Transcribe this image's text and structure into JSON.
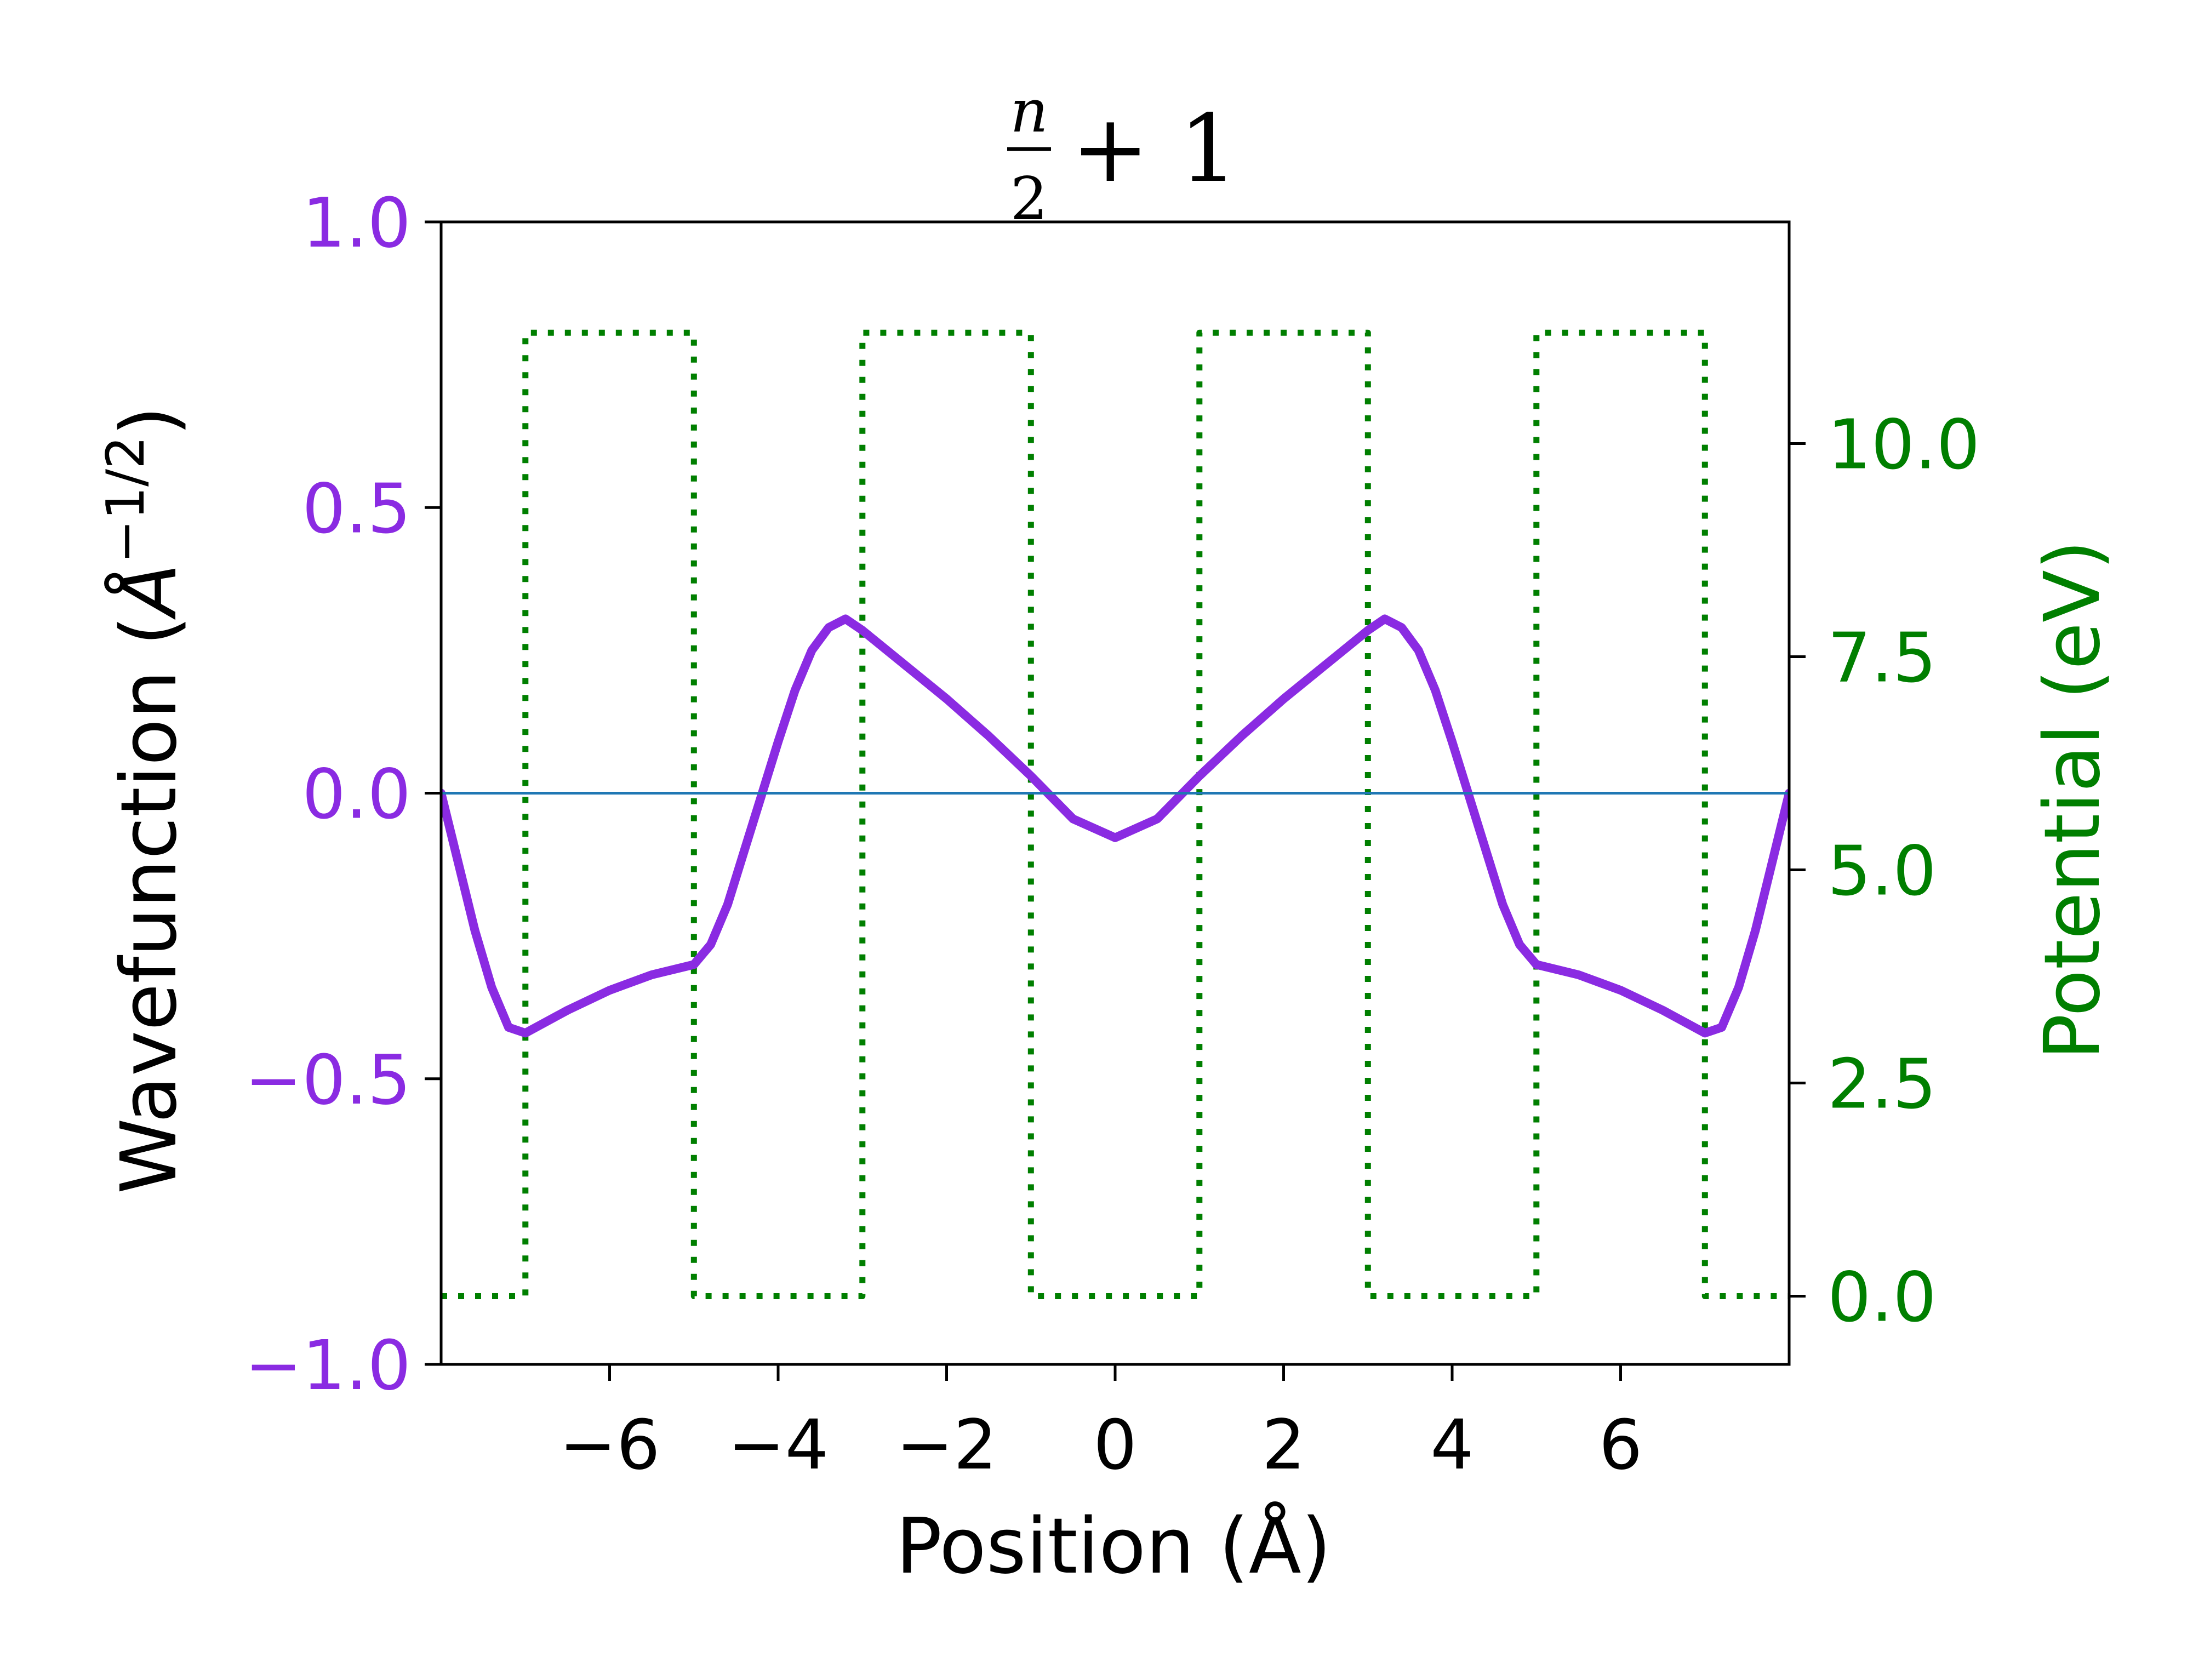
{
  "chart_data": {
    "type": "line",
    "title": {
      "fraction_numerator": "n",
      "fraction_denominator": "2",
      "rest": "+ 1"
    },
    "xlabel": "Position (Å)",
    "ylabel": "Wavefunction (Å⁻¹ᐟ²)",
    "ylabel_parts": {
      "base": "Wavefunction (",
      "unit": "Å",
      "exponent": "−1/2",
      "close": ")"
    },
    "y2label": "Potential (eV)",
    "xlim": [
      -8,
      8
    ],
    "ylim": [
      -1.0,
      1.0
    ],
    "y2lim": [
      -0.8,
      12.6
    ],
    "xticks": [
      -6,
      -4,
      -2,
      0,
      2,
      4,
      6
    ],
    "xtick_labels": [
      "−6",
      "−4",
      "−2",
      "0",
      "2",
      "4",
      "6"
    ],
    "yticks": [
      -1.0,
      -0.5,
      0.0,
      0.5,
      1.0
    ],
    "ytick_labels": [
      "−1.0",
      "−0.5",
      "0.0",
      "0.5",
      "1.0"
    ],
    "y2ticks": [
      0.0,
      2.5,
      5.0,
      7.5,
      10.0
    ],
    "y2tick_labels": [
      "0.0",
      "2.5",
      "5.0",
      "7.5",
      "10.0"
    ],
    "grid": false,
    "legend": "none",
    "colors": {
      "wavefunction": "#8a2be2",
      "potential": "#007f00",
      "zero_line": "#1f77b4",
      "axes": "#000000",
      "text": "#000000"
    },
    "series": [
      {
        "key": "wavefunction",
        "axis": "left",
        "style": "solid",
        "x": [
          -8.0,
          -7.8,
          -7.6,
          -7.4,
          -7.2,
          -7.0,
          -6.5,
          -6.0,
          -5.5,
          -5.0,
          -4.8,
          -4.6,
          -4.4,
          -4.2,
          -4.0,
          -3.8,
          -3.6,
          -3.4,
          -3.2,
          -3.0,
          -2.5,
          -2.0,
          -1.5,
          -1.0,
          -0.5,
          0.0,
          0.5,
          1.0,
          1.5,
          2.0,
          2.5,
          3.0,
          3.2,
          3.4,
          3.6,
          3.8,
          4.0,
          4.2,
          4.4,
          4.6,
          4.8,
          5.0,
          5.5,
          6.0,
          6.5,
          7.0,
          7.2,
          7.4,
          7.6,
          7.8,
          8.0
        ],
        "values": [
          0.0,
          -0.12,
          -0.24,
          -0.34,
          -0.41,
          -0.42,
          -0.38,
          -0.345,
          -0.318,
          -0.3,
          -0.265,
          -0.195,
          -0.1,
          -0.005,
          0.09,
          0.18,
          0.25,
          0.29,
          0.305,
          0.285,
          0.225,
          0.165,
          0.1,
          0.03,
          -0.045,
          -0.078,
          -0.045,
          0.03,
          0.1,
          0.165,
          0.225,
          0.285,
          0.305,
          0.29,
          0.25,
          0.18,
          0.09,
          -0.005,
          -0.1,
          -0.195,
          -0.265,
          -0.3,
          -0.318,
          -0.345,
          -0.38,
          -0.42,
          -0.41,
          -0.34,
          -0.24,
          -0.12,
          0.0
        ]
      },
      {
        "key": "potential",
        "axis": "right",
        "style": "dotted",
        "x": [
          -8,
          -7,
          -7,
          -5,
          -5,
          -3,
          -3,
          -1,
          -1,
          1,
          1,
          3,
          3,
          5,
          5,
          7,
          7,
          8
        ],
        "values": [
          0,
          0,
          11.3,
          11.3,
          0,
          0,
          11.3,
          11.3,
          0,
          0,
          11.3,
          11.3,
          0,
          0,
          11.3,
          11.3,
          0,
          0
        ]
      },
      {
        "key": "zero_line",
        "axis": "left",
        "style": "solid",
        "x": [
          -8,
          8
        ],
        "values": [
          0.0,
          0.0
        ]
      }
    ]
  }
}
